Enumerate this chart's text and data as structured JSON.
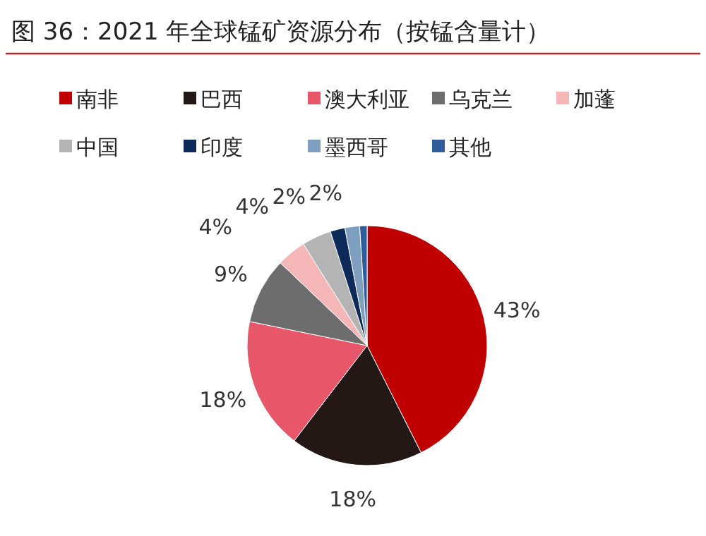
{
  "chart_data": {
    "type": "pie",
    "title": "图 36：2021 年全球锰矿资源分布（按锰含量计）",
    "categories": [
      "南非",
      "巴西",
      "澳大利亚",
      "乌克兰",
      "加蓬",
      "中国",
      "印度",
      "墨西哥",
      "其他"
    ],
    "values": [
      43,
      18,
      18,
      9,
      4,
      4,
      2,
      2,
      1
    ],
    "value_labels": [
      "43%",
      "18%",
      "18%",
      "9%",
      "4%",
      "4%",
      "2%",
      "2%",
      null
    ],
    "colors": [
      "#c00000",
      "#231815",
      "#e8566a",
      "#6d6d6d",
      "#f4b6b6",
      "#b4b4b4",
      "#0d2a5a",
      "#7f9fc0",
      "#2f5d9a"
    ],
    "legend": "top"
  }
}
